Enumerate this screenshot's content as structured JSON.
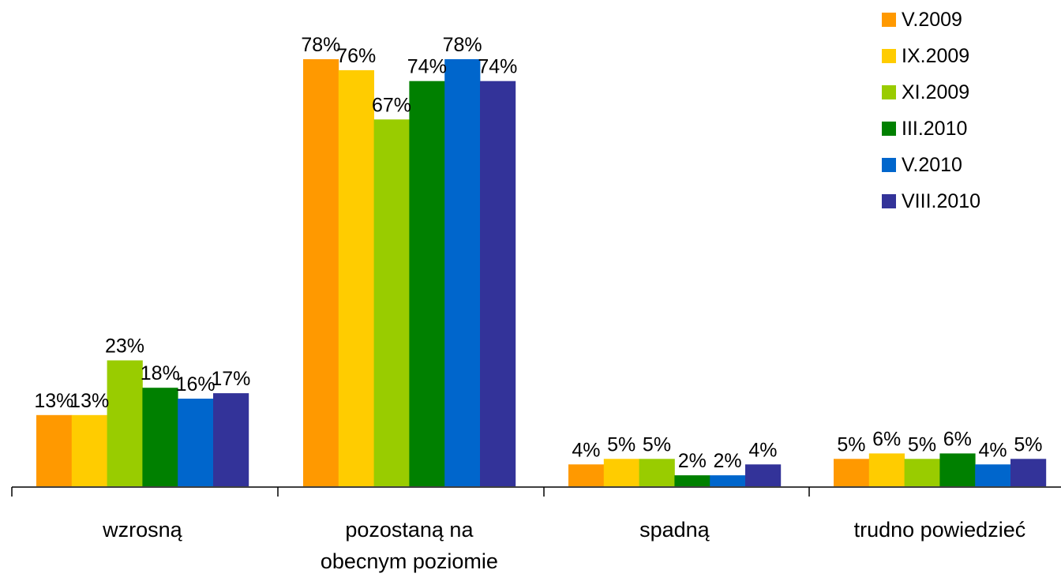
{
  "chart_data": {
    "type": "bar",
    "categories": [
      [
        "wzrosną"
      ],
      [
        "pozostaną na",
        "obecnym poziomie"
      ],
      [
        "spadną"
      ],
      [
        "trudno powiedzieć"
      ]
    ],
    "series": [
      {
        "name": "V.2009",
        "color": "#FF9900",
        "values": [
          13,
          78,
          4,
          5
        ],
        "labels": [
          "13%",
          "78%",
          "4%",
          "5%"
        ]
      },
      {
        "name": "IX.2009",
        "color": "#FFCC00",
        "values": [
          13,
          76,
          5,
          6
        ],
        "labels": [
          "13%",
          "76%",
          "5%",
          "6%"
        ]
      },
      {
        "name": "XI.2009",
        "color": "#99CC00",
        "values": [
          23,
          67,
          5,
          5
        ],
        "labels": [
          "23%",
          "67%",
          "5%",
          "5%"
        ]
      },
      {
        "name": "III.2010",
        "color": "#008000",
        "values": [
          18,
          74,
          2,
          6
        ],
        "labels": [
          "18%",
          "74%",
          "2%",
          "6%"
        ]
      },
      {
        "name": "V.2010",
        "color": "#0066CC",
        "values": [
          16,
          78,
          2,
          4
        ],
        "labels": [
          "16%",
          "78%",
          "2%",
          "4%"
        ]
      },
      {
        "name": "VIII.2010",
        "color": "#333399",
        "values": [
          17,
          74,
          4,
          5
        ],
        "labels": [
          "17%",
          "74%",
          "4%",
          "5%"
        ]
      }
    ],
    "ylim": [
      0,
      100
    ],
    "legend_position": "top-right",
    "grid": false
  }
}
